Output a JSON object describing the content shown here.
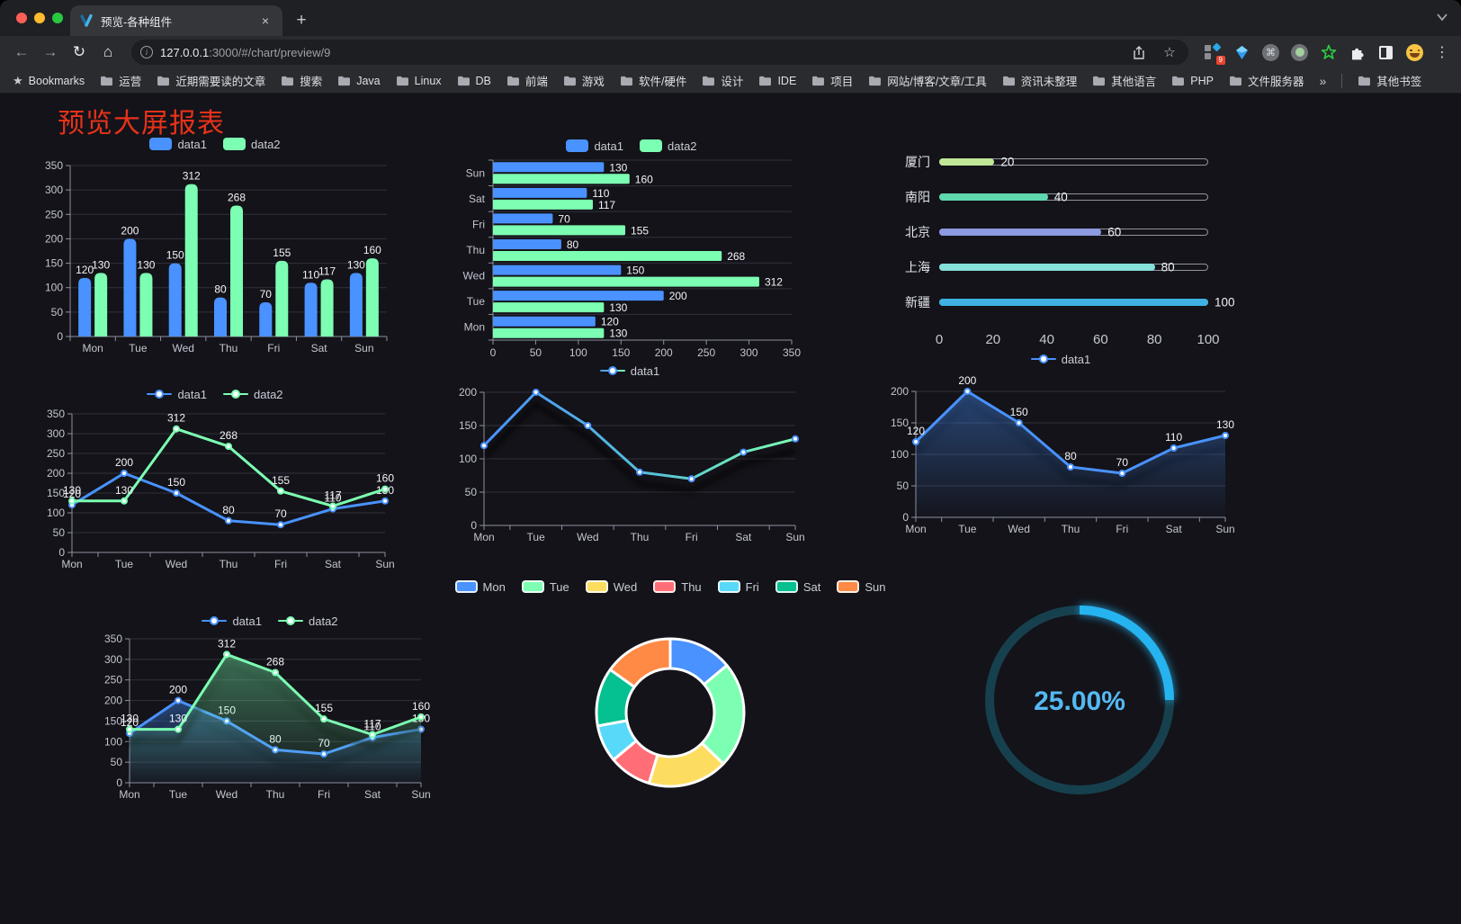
{
  "browser": {
    "tab_title": "预览-各种组件",
    "url_host": "127.0.0.1",
    "url_rest": ":3000/#/chart/preview/9",
    "bookmarks_label": "Bookmarks",
    "bookmarks": [
      "运营",
      "近期需要读的文章",
      "搜索",
      "Java",
      "Linux",
      "DB",
      "前端",
      "游戏",
      "软件/硬件",
      "设计",
      "IDE",
      "项目",
      "网站/博客/文章/工具",
      "资讯未整理",
      "其他语言",
      "PHP",
      "文件服务器"
    ],
    "bookmarks_overflow": "»",
    "other_bookmarks": "其他书签",
    "extension_badge": "9",
    "icons": {
      "close": "×",
      "new_tab": "+",
      "back": "←",
      "forward": "→",
      "reload": "↻",
      "home": "⌂",
      "star": "☆",
      "menu": "⋮",
      "command": "⌘",
      "bookmarks_star": "★"
    }
  },
  "page": {
    "title": "预览大屏报表"
  },
  "chart_data": [
    {
      "id": "bar-vertical",
      "type": "bar",
      "categories": [
        "Mon",
        "Tue",
        "Wed",
        "Thu",
        "Fri",
        "Sat",
        "Sun"
      ],
      "series": [
        {
          "name": "data1",
          "color": "#4992ff",
          "values": [
            120,
            200,
            150,
            80,
            70,
            110,
            130
          ]
        },
        {
          "name": "data2",
          "color": "#7cffb2",
          "values": [
            130,
            130,
            312,
            268,
            155,
            117,
            160
          ]
        }
      ],
      "ylim": [
        0,
        350
      ],
      "yticks": [
        0,
        50,
        100,
        150,
        200,
        250,
        300,
        350
      ],
      "legend_position": "top",
      "grid": true,
      "point_labels": true
    },
    {
      "id": "bar-horizontal",
      "type": "bar",
      "orientation": "horizontal",
      "categories": [
        "Mon",
        "Tue",
        "Wed",
        "Thu",
        "Fri",
        "Sat",
        "Sun"
      ],
      "category_display_order": "Sun at top, Mon at bottom",
      "series": [
        {
          "name": "data1",
          "color": "#4992ff",
          "values": [
            120,
            200,
            150,
            80,
            70,
            110,
            130
          ]
        },
        {
          "name": "data2",
          "color": "#7cffb2",
          "values": [
            130,
            130,
            312,
            268,
            155,
            117,
            160
          ]
        }
      ],
      "xlim": [
        0,
        350
      ],
      "xticks": [
        0,
        50,
        100,
        150,
        200,
        250,
        300,
        350
      ],
      "legend_position": "top",
      "grid": true,
      "point_labels": true
    },
    {
      "id": "city-progress",
      "type": "bar",
      "subtype": "progress-list",
      "items": [
        {
          "label": "厦门",
          "value": 20,
          "color": "#c0e796"
        },
        {
          "label": "南阳",
          "value": 40,
          "color": "#5fd8ad"
        },
        {
          "label": "北京",
          "value": 60,
          "color": "#8d99e0"
        },
        {
          "label": "上海",
          "value": 80,
          "color": "#85dfdb"
        },
        {
          "label": "新疆",
          "value": 100,
          "color": "#3fb1e3"
        }
      ],
      "max": 100,
      "axis_ticks": [
        0,
        20,
        40,
        60,
        80,
        100
      ]
    },
    {
      "id": "line-two-series",
      "type": "line",
      "categories": [
        "Mon",
        "Tue",
        "Wed",
        "Thu",
        "Fri",
        "Sat",
        "Sun"
      ],
      "series": [
        {
          "name": "data1",
          "color": "#4992ff",
          "values": [
            120,
            200,
            150,
            80,
            70,
            110,
            130
          ]
        },
        {
          "name": "data2",
          "color": "#7cffb2",
          "values": [
            130,
            130,
            312,
            268,
            155,
            117,
            160
          ]
        }
      ],
      "ylim": [
        0,
        350
      ],
      "yticks": [
        0,
        50,
        100,
        150,
        200,
        250,
        300,
        350
      ],
      "legend_position": "top",
      "point_labels": true
    },
    {
      "id": "line-gradient",
      "type": "line",
      "categories": [
        "Mon",
        "Tue",
        "Wed",
        "Thu",
        "Fri",
        "Sat",
        "Sun"
      ],
      "series": [
        {
          "name": "data1",
          "gradient": [
            "#4992ff",
            "#7cffb2"
          ],
          "values": [
            120,
            200,
            150,
            80,
            70,
            110,
            130
          ]
        }
      ],
      "ylim": [
        0,
        200
      ],
      "yticks": [
        0,
        50,
        100,
        150,
        200
      ],
      "legend_position": "top",
      "point_labels": false
    },
    {
      "id": "line-area",
      "type": "area",
      "categories": [
        "Mon",
        "Tue",
        "Wed",
        "Thu",
        "Fri",
        "Sat",
        "Sun"
      ],
      "series": [
        {
          "name": "data1",
          "color": "#4992ff",
          "area": true,
          "values": [
            120,
            200,
            150,
            80,
            70,
            110,
            130
          ]
        }
      ],
      "ylim": [
        0,
        200
      ],
      "yticks": [
        0,
        50,
        100,
        150,
        200
      ],
      "legend_position": "top",
      "point_labels": true
    },
    {
      "id": "line-area-two-series",
      "type": "area",
      "categories": [
        "Mon",
        "Tue",
        "Wed",
        "Thu",
        "Fri",
        "Sat",
        "Sun"
      ],
      "series": [
        {
          "name": "data1",
          "color": "#4992ff",
          "area": true,
          "values": [
            120,
            200,
            150,
            80,
            70,
            110,
            130
          ]
        },
        {
          "name": "data2",
          "color": "#7cffb2",
          "area": true,
          "values": [
            130,
            130,
            312,
            268,
            155,
            117,
            160
          ]
        }
      ],
      "ylim": [
        0,
        350
      ],
      "yticks": [
        0,
        50,
        100,
        150,
        200,
        250,
        300,
        350
      ],
      "legend_position": "top",
      "point_labels": true
    },
    {
      "id": "donut",
      "type": "pie",
      "subtype": "donut",
      "categories": [
        "Mon",
        "Tue",
        "Wed",
        "Thu",
        "Fri",
        "Sat",
        "Sun"
      ],
      "values": [
        120,
        200,
        150,
        80,
        70,
        110,
        130
      ],
      "colors": [
        "#4992ff",
        "#7cffb2",
        "#fddd60",
        "#ff6e76",
        "#58d9f9",
        "#05c091",
        "#ff8a45"
      ],
      "legend_position": "top"
    },
    {
      "id": "gauge",
      "type": "gauge",
      "value": 25,
      "max": 100,
      "label": "25.00%",
      "color": "#28b4f0",
      "track_color": "#17404e",
      "text_color": "#55b9f2"
    }
  ]
}
